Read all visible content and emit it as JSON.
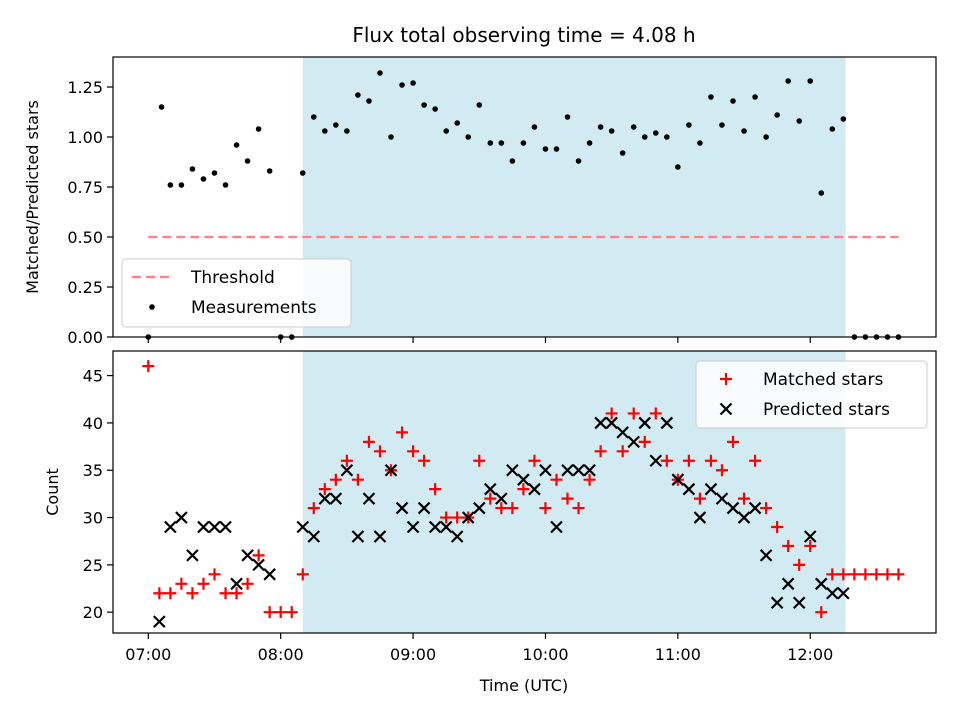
{
  "chart_data": [
    {
      "type": "scatter",
      "title": "Flux total observing time = 4.08 h",
      "xlabel": "",
      "ylabel": "Matched/Predicted stars",
      "ylim": [
        0,
        1.4
      ],
      "yticks": [
        "0.00",
        "0.25",
        "0.50",
        "0.75",
        "1.00",
        "1.25"
      ],
      "xticks": [
        "07:00",
        "08:00",
        "09:00",
        "10:00",
        "11:00",
        "12:00"
      ],
      "grid": false,
      "legend": "lower-left",
      "shaded_interval": [
        "08:10",
        "12:16"
      ],
      "shaded_color": "#add8e6",
      "threshold": {
        "name": "Threshold",
        "value": 0.5,
        "x": [
          "07:00",
          "12:40"
        ],
        "color": "#ff8080"
      },
      "series": [
        {
          "name": "Measurements",
          "color": "#000000",
          "x": [
            "07:00",
            "07:06",
            "07:10",
            "07:15",
            "07:20",
            "07:25",
            "07:30",
            "07:35",
            "07:40",
            "07:45",
            "07:50",
            "07:55",
            "08:00",
            "08:05",
            "08:10",
            "08:15",
            "08:20",
            "08:25",
            "08:30",
            "08:35",
            "08:40",
            "08:45",
            "08:50",
            "08:55",
            "09:00",
            "09:05",
            "09:10",
            "09:15",
            "09:20",
            "09:25",
            "09:30",
            "09:35",
            "09:40",
            "09:45",
            "09:50",
            "09:55",
            "10:00",
            "10:05",
            "10:10",
            "10:15",
            "10:20",
            "10:25",
            "10:30",
            "10:35",
            "10:40",
            "10:45",
            "10:50",
            "10:55",
            "11:00",
            "11:05",
            "11:10",
            "11:15",
            "11:20",
            "11:25",
            "11:30",
            "11:35",
            "11:40",
            "11:45",
            "11:50",
            "11:55",
            "12:00",
            "12:05",
            "12:10",
            "12:15",
            "12:20",
            "12:25",
            "12:30",
            "12:35",
            "12:40"
          ],
          "y": [
            0.0,
            1.15,
            0.76,
            0.76,
            0.84,
            0.79,
            0.82,
            0.76,
            0.96,
            0.88,
            1.04,
            0.83,
            0.0,
            0.0,
            0.82,
            1.1,
            1.03,
            1.06,
            1.03,
            1.21,
            1.18,
            1.32,
            1.0,
            1.26,
            1.27,
            1.16,
            1.14,
            1.03,
            1.07,
            1.0,
            1.16,
            0.97,
            0.97,
            0.88,
            0.97,
            1.05,
            0.94,
            0.94,
            1.1,
            0.88,
            0.97,
            1.05,
            1.03,
            0.92,
            1.05,
            1.0,
            1.02,
            1.0,
            0.85,
            1.06,
            0.97,
            1.2,
            1.06,
            1.18,
            1.03,
            1.2,
            1.0,
            1.11,
            1.28,
            1.08,
            1.28,
            0.72,
            1.04,
            1.09,
            0.0,
            0.0,
            0.0,
            0.0,
            0.0
          ]
        }
      ]
    },
    {
      "type": "scatter",
      "title": "",
      "xlabel": "Time (UTC)",
      "ylabel": "Count",
      "ylim": [
        17.8,
        47.6
      ],
      "yticks": [
        "20",
        "25",
        "30",
        "35",
        "40",
        "45"
      ],
      "xticks": [
        "07:00",
        "08:00",
        "09:00",
        "10:00",
        "11:00",
        "12:00"
      ],
      "grid": false,
      "legend": "top-right",
      "shaded_interval": [
        "08:10",
        "12:16"
      ],
      "shaded_color": "#add8e6",
      "series": [
        {
          "name": "Matched stars",
          "color": "#ff0000",
          "marker": "plus",
          "x": [
            "07:00",
            "07:05",
            "07:10",
            "07:15",
            "07:20",
            "07:25",
            "07:30",
            "07:35",
            "07:40",
            "07:45",
            "07:50",
            "07:55",
            "08:00",
            "08:05",
            "08:10",
            "08:15",
            "08:20",
            "08:25",
            "08:30",
            "08:35",
            "08:40",
            "08:45",
            "08:50",
            "08:55",
            "09:00",
            "09:05",
            "09:10",
            "09:15",
            "09:20",
            "09:25",
            "09:30",
            "09:35",
            "09:40",
            "09:45",
            "09:50",
            "09:55",
            "10:00",
            "10:05",
            "10:10",
            "10:15",
            "10:20",
            "10:25",
            "10:30",
            "10:35",
            "10:40",
            "10:45",
            "10:50",
            "10:55",
            "11:00",
            "11:05",
            "11:10",
            "11:15",
            "11:20",
            "11:25",
            "11:30",
            "11:35",
            "11:40",
            "11:45",
            "11:50",
            "11:55",
            "12:00",
            "12:05",
            "12:10",
            "12:15",
            "12:20",
            "12:25",
            "12:30",
            "12:35",
            "12:40"
          ],
          "y": [
            46,
            22,
            22,
            23,
            22,
            23,
            24,
            22,
            22,
            23,
            26,
            20,
            20,
            20,
            24,
            31,
            33,
            34,
            36,
            34,
            38,
            37,
            35,
            39,
            37,
            36,
            33,
            30,
            30,
            30,
            36,
            32,
            31,
            31,
            33,
            36,
            31,
            34,
            32,
            31,
            34,
            37,
            41,
            37,
            41,
            38,
            41,
            36,
            34,
            36,
            32,
            36,
            35,
            38,
            32,
            36,
            31,
            29,
            27,
            25,
            27,
            20,
            24,
            24,
            24,
            24,
            24,
            24,
            24
          ]
        },
        {
          "name": "Predicted stars",
          "color": "#000000",
          "marker": "x",
          "x": [
            "07:05",
            "07:10",
            "07:15",
            "07:20",
            "07:25",
            "07:30",
            "07:35",
            "07:40",
            "07:45",
            "07:50",
            "07:55",
            "08:10",
            "08:15",
            "08:20",
            "08:25",
            "08:30",
            "08:35",
            "08:40",
            "08:45",
            "08:50",
            "08:55",
            "09:00",
            "09:05",
            "09:10",
            "09:15",
            "09:20",
            "09:25",
            "09:30",
            "09:35",
            "09:40",
            "09:45",
            "09:50",
            "09:55",
            "10:00",
            "10:05",
            "10:10",
            "10:15",
            "10:20",
            "10:25",
            "10:30",
            "10:35",
            "10:40",
            "10:45",
            "10:50",
            "10:55",
            "11:00",
            "11:05",
            "11:10",
            "11:15",
            "11:20",
            "11:25",
            "11:30",
            "11:35",
            "11:40",
            "11:45",
            "11:50",
            "11:55",
            "12:00",
            "12:05",
            "12:10",
            "12:15"
          ],
          "y": [
            19,
            29,
            30,
            26,
            29,
            29,
            29,
            23,
            26,
            25,
            24,
            29,
            28,
            32,
            32,
            35,
            28,
            32,
            28,
            35,
            31,
            29,
            31,
            29,
            29,
            28,
            30,
            31,
            33,
            32,
            35,
            34,
            33,
            35,
            29,
            35,
            35,
            35,
            40,
            40,
            39,
            38,
            40,
            36,
            40,
            34,
            33,
            30,
            33,
            32,
            31,
            30,
            31,
            26,
            21,
            23,
            21,
            28,
            23,
            22,
            22
          ]
        }
      ]
    }
  ]
}
